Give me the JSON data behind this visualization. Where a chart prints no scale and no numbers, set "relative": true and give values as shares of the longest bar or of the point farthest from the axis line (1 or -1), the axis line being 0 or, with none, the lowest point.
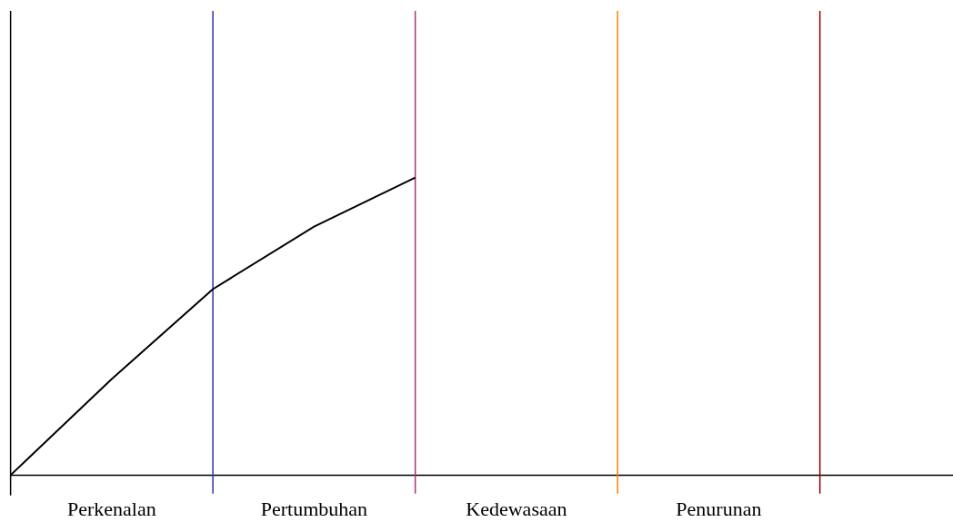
{
  "chart_data": {
    "type": "line",
    "relative": true,
    "categories": [
      null,
      "Perkenalan",
      null,
      "Pertumbuhan",
      null,
      "Kedewasaan",
      null,
      "Penurunan",
      null
    ],
    "series": [
      {
        "color": "#000000",
        "values": [
          0,
          0.323,
          0.625,
          0.835,
          1,
          null,
          null,
          null,
          null
        ]
      }
    ],
    "grid": false
  }
}
